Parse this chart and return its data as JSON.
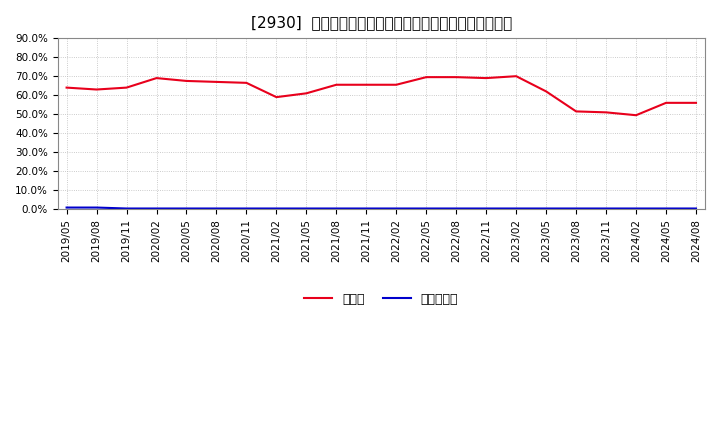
{
  "title": "[2930]  現頲金、有利子負債の総資産に対する比率の推移",
  "legend_cash": "現頲金",
  "legend_debt": "有利子負債",
  "x_labels": [
    "2019/05",
    "2019/08",
    "2019/11",
    "2020/02",
    "2020/05",
    "2020/08",
    "2020/11",
    "2021/02",
    "2021/05",
    "2021/08",
    "2021/11",
    "2022/02",
    "2022/05",
    "2022/08",
    "2022/11",
    "2023/02",
    "2023/05",
    "2023/08",
    "2023/11",
    "2024/02",
    "2024/05",
    "2024/08"
  ],
  "cash_values": [
    0.64,
    0.63,
    0.64,
    0.69,
    0.675,
    0.67,
    0.665,
    0.59,
    0.61,
    0.655,
    0.655,
    0.655,
    0.695,
    0.695,
    0.69,
    0.7,
    0.62,
    0.515,
    0.51,
    0.495,
    0.56,
    0.56
  ],
  "debt_values": [
    0.01,
    0.01,
    0.005,
    0.005,
    0.005,
    0.005,
    0.005,
    0.005,
    0.005,
    0.005,
    0.005,
    0.005,
    0.005,
    0.005,
    0.005,
    0.005,
    0.005,
    0.005,
    0.005,
    0.005,
    0.005,
    0.005
  ],
  "cash_color": "#e8001c",
  "debt_color": "#0000cc",
  "ylim": [
    0.0,
    0.9
  ],
  "yticks": [
    0.0,
    0.1,
    0.2,
    0.3,
    0.4,
    0.5,
    0.6,
    0.7,
    0.8,
    0.9
  ],
  "grid_color": "#bbbbbb",
  "bg_color": "#ffffff",
  "title_fontsize": 11,
  "tick_fontsize": 7.5,
  "legend_fontsize": 9,
  "line_width": 1.5
}
